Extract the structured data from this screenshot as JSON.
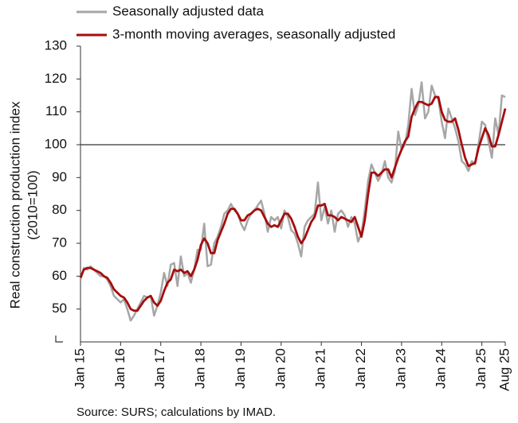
{
  "chart_data": {
    "type": "line",
    "ylabel": [
      "Real construction production index",
      "(2010=100)"
    ],
    "source": "Source: SURS; calculations by IMAD.",
    "categories": [
      "Jan 15",
      null,
      null,
      null,
      null,
      null,
      null,
      null,
      null,
      null,
      null,
      null,
      "Jan 16",
      null,
      null,
      null,
      null,
      null,
      null,
      null,
      null,
      null,
      null,
      null,
      "Jan 17",
      null,
      null,
      null,
      null,
      null,
      null,
      null,
      null,
      null,
      null,
      null,
      "Jan 18",
      null,
      null,
      null,
      null,
      null,
      null,
      null,
      null,
      null,
      null,
      null,
      "Jan 19",
      null,
      null,
      null,
      null,
      null,
      null,
      null,
      null,
      null,
      null,
      null,
      "Jan 20",
      null,
      null,
      null,
      null,
      null,
      null,
      null,
      null,
      null,
      null,
      null,
      "Jan 21",
      null,
      null,
      null,
      null,
      null,
      null,
      null,
      null,
      null,
      null,
      null,
      "Jan 22",
      null,
      null,
      null,
      null,
      null,
      null,
      null,
      null,
      null,
      null,
      null,
      "Jan 23",
      null,
      null,
      null,
      null,
      null,
      null,
      null,
      null,
      null,
      null,
      null,
      "Jan 24",
      null,
      null,
      null,
      null,
      null,
      null,
      null,
      null,
      null,
      null,
      null,
      "Jan 25",
      null,
      null,
      null,
      null,
      null,
      null,
      "Aug 25"
    ],
    "series": [
      {
        "name": "Seasonally adjusted data",
        "color": "#a6a6a6",
        "values": [
          59,
          62.5,
          62,
          63,
          62,
          61,
          60,
          60,
          59,
          57,
          54,
          53,
          52,
          53,
          50,
          46.5,
          48,
          50,
          52,
          54,
          53.5,
          54,
          48,
          51,
          55,
          61,
          57,
          63.5,
          64,
          57,
          66,
          60,
          61,
          58,
          62,
          68,
          68,
          76,
          63,
          63.5,
          70,
          72,
          75,
          79,
          80,
          82,
          80,
          79,
          76,
          74,
          77,
          79,
          80,
          81.5,
          83,
          79,
          73.5,
          78,
          77,
          78,
          74.5,
          80,
          78,
          74,
          73,
          70,
          66,
          75,
          77,
          78,
          79,
          88.5,
          77,
          81,
          76,
          80,
          73.5,
          79,
          80,
          78.5,
          75,
          78,
          76,
          70.5,
          73,
          80,
          89,
          94,
          91.5,
          89,
          91,
          95,
          90,
          88.5,
          92,
          104,
          98.5,
          100,
          106,
          117,
          109,
          112,
          119,
          108,
          110,
          118,
          115,
          114,
          107,
          102,
          111,
          108,
          105,
          101,
          95,
          94,
          92,
          95,
          94,
          100,
          107,
          106,
          101,
          96,
          108,
          103,
          115,
          114.5
        ]
      },
      {
        "name": "3-month moving averages, seasonally adjusted",
        "color": "#a50d0d",
        "values": [
          59.5,
          62,
          62.5,
          62.5,
          62,
          61.5,
          61,
          60,
          59.5,
          58,
          56,
          55,
          54,
          53.5,
          52,
          50,
          49.5,
          49.5,
          51,
          52.5,
          53.5,
          54,
          52,
          51,
          52.5,
          55.5,
          58,
          59,
          62,
          61.5,
          62,
          61,
          61.5,
          60,
          62,
          65,
          69.5,
          71.5,
          70,
          67,
          67,
          71,
          73.5,
          76,
          79,
          80.5,
          80.5,
          79,
          77,
          77,
          78.5,
          79,
          80,
          80.5,
          80,
          78,
          76,
          75,
          75.5,
          75,
          77,
          79,
          79,
          77.5,
          75,
          72,
          70,
          71.5,
          74,
          76.5,
          78,
          81.5,
          81.5,
          82,
          78.5,
          78.5,
          78,
          77,
          78,
          77.5,
          77,
          76.5,
          78,
          75,
          72,
          77,
          85,
          91.5,
          91.5,
          90.5,
          91.5,
          92.5,
          92.5,
          90,
          93,
          96,
          98.5,
          101,
          102.5,
          108.5,
          111,
          113,
          113,
          112.5,
          112,
          112.5,
          114.5,
          114.5,
          110,
          107.5,
          107,
          107,
          108,
          104.5,
          100,
          96,
          93.5,
          94,
          94.5,
          99,
          102,
          105,
          103,
          99.5,
          99.5,
          103,
          107,
          111
        ]
      }
    ],
    "ylim": [
      40,
      130
    ],
    "yticks": [
      50,
      60,
      70,
      80,
      90,
      100,
      110,
      120,
      130
    ],
    "reference_line": 100
  }
}
